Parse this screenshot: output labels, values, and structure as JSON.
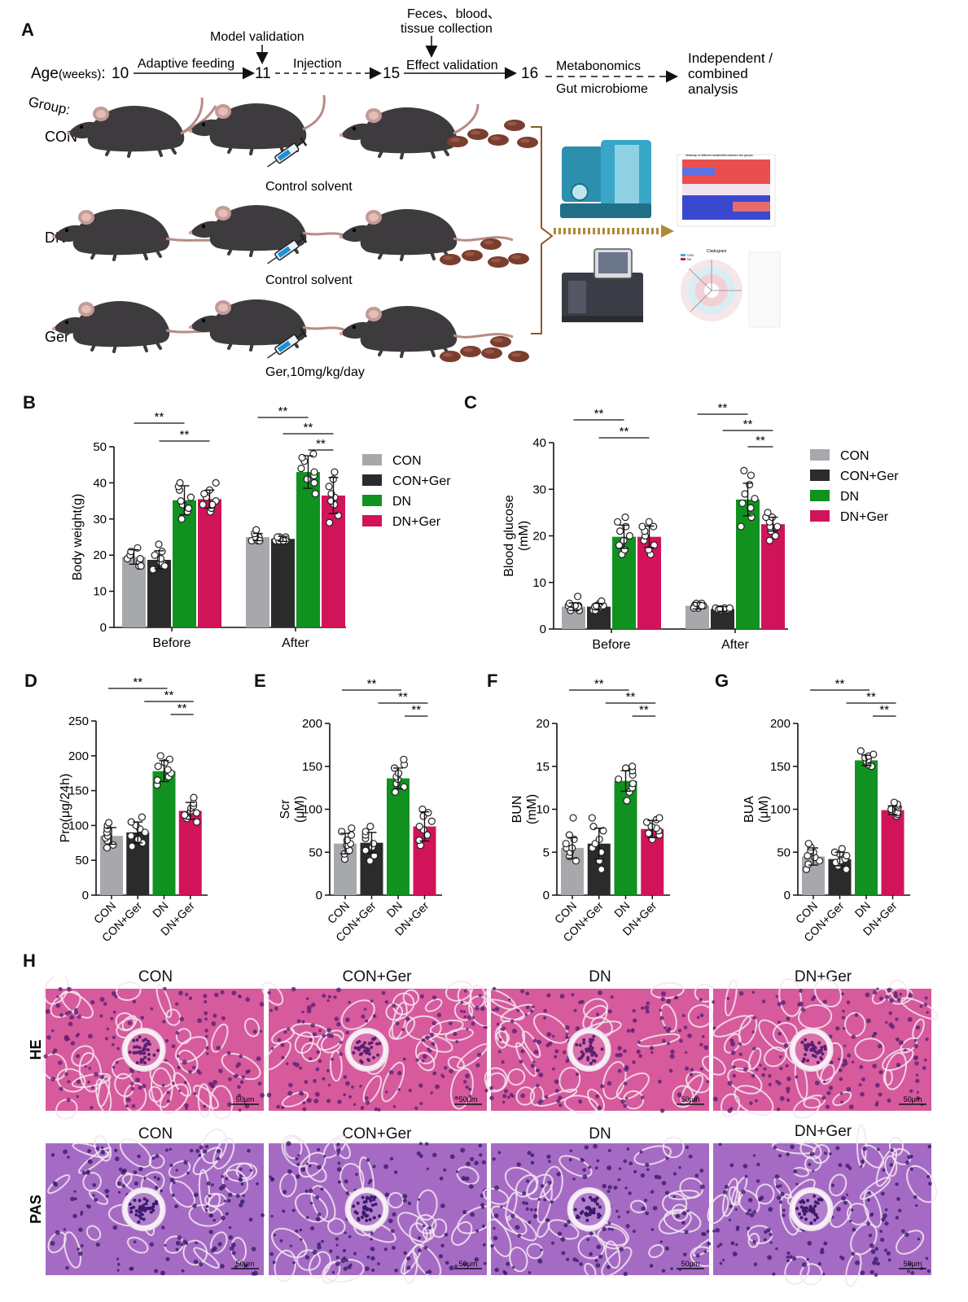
{
  "panel_letters": {
    "A": "A",
    "B": "B",
    "C": "C",
    "D": "D",
    "E": "E",
    "F": "F",
    "G": "G",
    "H": "H"
  },
  "schematic": {
    "age_label": "Age",
    "age_units": "(weeks)",
    "age_colon": ":",
    "ages": [
      "10",
      "11",
      "15",
      "16"
    ],
    "steps": {
      "adaptive": "Adaptive feeding",
      "model": "Model validation",
      "injection": "Injection",
      "collection_line1": "Feces、blood、",
      "collection_line2": "tissue collection",
      "effect": "Effect validation",
      "metabonomics": "Metabonomics",
      "gut": "Gut microbiome",
      "analysis_line1": "Independent /",
      "analysis_line2": "combined",
      "analysis_line3": "analysis"
    },
    "group_label": "Group:",
    "groups": [
      "CON",
      "DN",
      "Ger"
    ],
    "treatments": [
      "Control solvent",
      "Control solvent",
      "Ger,10mg/kg/day"
    ],
    "thumb_heatmap_title": "Heatmap of different metabolites between two groups",
    "thumb_cladogram_title": "Cladogram",
    "thumb_cladogram_legend": [
      "CON",
      "DN"
    ],
    "colors": {
      "mouse": "#3d3b3d",
      "tail": "#b78b86",
      "feces": "#7a3e2f",
      "device_teal": "#2c8fae",
      "bracket": "#8a5a2b"
    }
  },
  "chart_data": [
    {
      "id": "B",
      "type": "bar",
      "ylabel": "Body weight(g)",
      "categories": [
        "Before",
        "After"
      ],
      "yticks": [
        0,
        10,
        20,
        30,
        40,
        50
      ],
      "ylim": [
        0,
        50
      ],
      "series": [
        {
          "name": "CON",
          "color": "#a7a8ab",
          "values": [
            19.5,
            25.0
          ],
          "err": [
            2.0,
            1.0
          ],
          "points": [
            [
              17,
              18,
              19,
              19,
              20,
              20,
              21,
              22,
              17
            ],
            [
              24,
              24,
              25,
              25,
              25,
              26,
              26,
              27,
              24
            ]
          ]
        },
        {
          "name": "CON+Ger",
          "color": "#2b2b2b",
          "values": [
            18.7,
            24.5
          ],
          "err": [
            2.5,
            0.7
          ],
          "points": [
            [
              16,
              17,
              18,
              18,
              19,
              20,
              21,
              23,
              17
            ],
            [
              24,
              24,
              24,
              25,
              25,
              25,
              24,
              25,
              24
            ]
          ]
        },
        {
          "name": "DN",
          "color": "#119120",
          "values": [
            35.2,
            43.0
          ],
          "err": [
            4.0,
            4.5
          ],
          "points": [
            [
              30,
              32,
              34,
              35,
              36,
              38,
              39,
              40,
              33
            ],
            [
              37,
              40,
              42,
              43,
              44,
              46,
              47,
              48,
              41
            ]
          ]
        },
        {
          "name": "DN+Ger",
          "color": "#d1145a",
          "values": [
            35.5,
            36.5
          ],
          "err": [
            2.5,
            5.0
          ],
          "points": [
            [
              32,
              33,
              34,
              35,
              36,
              37,
              38,
              40,
              34
            ],
            [
              29,
              31,
              34,
              36,
              37,
              39,
              41,
              43,
              35
            ]
          ]
        }
      ],
      "significance": [
        {
          "label": "**",
          "level": 1
        },
        {
          "label": "**",
          "level": 2
        },
        {
          "label": "**",
          "level": 1
        },
        {
          "label": "**",
          "level": 2
        },
        {
          "label": "**",
          "level": 3
        }
      ],
      "legend_position": "right"
    },
    {
      "id": "C",
      "type": "bar",
      "ylabel": "Blood glucose",
      "ylabel_unit": "(mM)",
      "categories": [
        "Before",
        "After"
      ],
      "yticks": [
        0,
        10,
        20,
        30,
        40
      ],
      "ylim": [
        0,
        40
      ],
      "series": [
        {
          "name": "CON",
          "color": "#a7a8ab",
          "values": [
            4.8,
            5.0
          ],
          "err": [
            0.8,
            0.7
          ],
          "points": [
            [
              4,
              4.5,
              5,
              5,
              5.5,
              4,
              4.8,
              5,
              7
            ],
            [
              4.5,
              5,
              5,
              5.5,
              5,
              4.8,
              5,
              4.5,
              5.5
            ]
          ]
        },
        {
          "name": "CON+Ger",
          "color": "#2b2b2b",
          "values": [
            4.8,
            4.3
          ],
          "err": [
            0.7,
            0.5
          ],
          "points": [
            [
              4,
              4.5,
              5,
              5,
              5.5,
              4,
              4.8,
              5,
              6
            ],
            [
              4,
              4.2,
              4.5,
              4.3,
              4.5,
              4,
              4.2,
              4.5,
              4.3
            ]
          ]
        },
        {
          "name": "DN",
          "color": "#119120",
          "values": [
            19.8,
            27.8
          ],
          "err": [
            2.5,
            3.5
          ],
          "points": [
            [
              16,
              17,
              18,
              19,
              20,
              21,
              22,
              23,
              24
            ],
            [
              22,
              24,
              26,
              27,
              28,
              29,
              31,
              33,
              34
            ]
          ]
        },
        {
          "name": "DN+Ger",
          "color": "#d1145a",
          "values": [
            19.8,
            22.5
          ],
          "err": [
            2.3,
            1.5
          ],
          "points": [
            [
              16,
              17,
              18,
              19,
              20,
              21,
              22,
              22,
              23
            ],
            [
              19,
              20,
              21,
              22,
              22,
              23,
              24,
              24,
              25
            ]
          ]
        }
      ],
      "significance": [
        {
          "label": "**",
          "level": 1
        },
        {
          "label": "**",
          "level": 2
        },
        {
          "label": "**",
          "level": 1
        },
        {
          "label": "**",
          "level": 2
        },
        {
          "label": "**",
          "level": 3
        }
      ],
      "legend_position": "right"
    },
    {
      "id": "D",
      "type": "bar",
      "ylabel": "Pro(μg/24h)",
      "categories": [
        "CON",
        "CON+Ger",
        "DN",
        "DN+Ger"
      ],
      "colors": [
        "#a7a8ab",
        "#2b2b2b",
        "#119120",
        "#d1145a"
      ],
      "values": [
        85,
        90,
        178,
        121
      ],
      "err": [
        12,
        15,
        15,
        12
      ],
      "points": [
        [
          68,
          72,
          78,
          82,
          85,
          90,
          95,
          100,
          104
        ],
        [
          70,
          75,
          80,
          85,
          90,
          95,
          100,
          105,
          112
        ],
        [
          158,
          165,
          170,
          175,
          180,
          185,
          190,
          195,
          200
        ],
        [
          105,
          110,
          115,
          118,
          121,
          125,
          128,
          132,
          140
        ]
      ],
      "yticks": [
        0,
        50,
        100,
        150,
        200,
        250
      ],
      "ylim": [
        0,
        250
      ],
      "significance": [
        {
          "label": "**"
        },
        {
          "label": "**"
        },
        {
          "label": "**"
        }
      ]
    },
    {
      "id": "E",
      "type": "bar",
      "ylabel": "Scr",
      "ylabel_unit": "(μM)",
      "categories": [
        "CON",
        "CON+Ger",
        "DN",
        "DN+Ger"
      ],
      "colors": [
        "#a7a8ab",
        "#2b2b2b",
        "#119120",
        "#d1145a"
      ],
      "values": [
        60,
        61,
        136,
        80
      ],
      "err": [
        12,
        12,
        12,
        17
      ],
      "points": [
        [
          42,
          48,
          52,
          58,
          60,
          64,
          70,
          74,
          78
        ],
        [
          40,
          46,
          52,
          56,
          60,
          66,
          70,
          74,
          80
        ],
        [
          120,
          126,
          130,
          135,
          138,
          142,
          148,
          152,
          158
        ],
        [
          58,
          64,
          70,
          76,
          80,
          86,
          92,
          96,
          100
        ]
      ],
      "yticks": [
        0,
        50,
        100,
        150,
        200
      ],
      "ylim": [
        0,
        200
      ],
      "significance": [
        {
          "label": "**"
        },
        {
          "label": "**"
        },
        {
          "label": "**"
        }
      ]
    },
    {
      "id": "F",
      "type": "bar",
      "ylabel": "BUN",
      "ylabel_unit": "(mM)",
      "categories": [
        "CON",
        "CON+Ger",
        "DN",
        "DN+Ger"
      ],
      "colors": [
        "#a7a8ab",
        "#2b2b2b",
        "#119120",
        "#d1145a"
      ],
      "values": [
        5.5,
        6.0,
        13.3,
        7.7
      ],
      "err": [
        1.2,
        1.8,
        1.2,
        1.0
      ],
      "points": [
        [
          4,
          4.5,
          5,
          5.5,
          5.5,
          6,
          6.5,
          7,
          9
        ],
        [
          3,
          4,
          5,
          5.5,
          6,
          6.5,
          7.5,
          8,
          9
        ],
        [
          11,
          12,
          12.5,
          13,
          13.5,
          14,
          14.5,
          15,
          14.8
        ],
        [
          6.5,
          7,
          7.2,
          7.5,
          7.8,
          8,
          8.5,
          8.8,
          9
        ]
      ],
      "yticks": [
        0,
        5,
        10,
        15,
        20
      ],
      "ylim": [
        0,
        20
      ],
      "significance": [
        {
          "label": "**"
        },
        {
          "label": "**"
        },
        {
          "label": "**"
        }
      ]
    },
    {
      "id": "G",
      "type": "bar",
      "ylabel": "BUA",
      "ylabel_unit": "(μM)",
      "categories": [
        "CON",
        "CON+Ger",
        "DN",
        "DN+Ger"
      ],
      "colors": [
        "#a7a8ab",
        "#2b2b2b",
        "#119120",
        "#d1145a"
      ],
      "values": [
        45,
        42,
        157,
        99
      ],
      "err": [
        10,
        8,
        6,
        5
      ],
      "points": [
        [
          30,
          36,
          40,
          44,
          46,
          50,
          52,
          56,
          60
        ],
        [
          30,
          34,
          38,
          40,
          42,
          46,
          48,
          50,
          54
        ],
        [
          150,
          152,
          154,
          156,
          158,
          160,
          162,
          164,
          168
        ],
        [
          92,
          94,
          96,
          98,
          100,
          102,
          104,
          106,
          108
        ]
      ],
      "yticks": [
        0,
        50,
        100,
        150,
        200
      ],
      "ylim": [
        0,
        200
      ],
      "significance": [
        {
          "label": "**"
        },
        {
          "label": "**"
        },
        {
          "label": "**"
        }
      ]
    }
  ],
  "histology": {
    "columns": [
      "CON",
      "CON+Ger",
      "DN",
      "DN+Ger"
    ],
    "rows": [
      "HE",
      "PAS"
    ],
    "scale_bar": "50μm",
    "colors": {
      "he_bg": "#d65a9c",
      "he_dark": "#5a1f72",
      "pas_bg": "#a56bc4",
      "pas_dark": "#3b1a6b"
    }
  }
}
